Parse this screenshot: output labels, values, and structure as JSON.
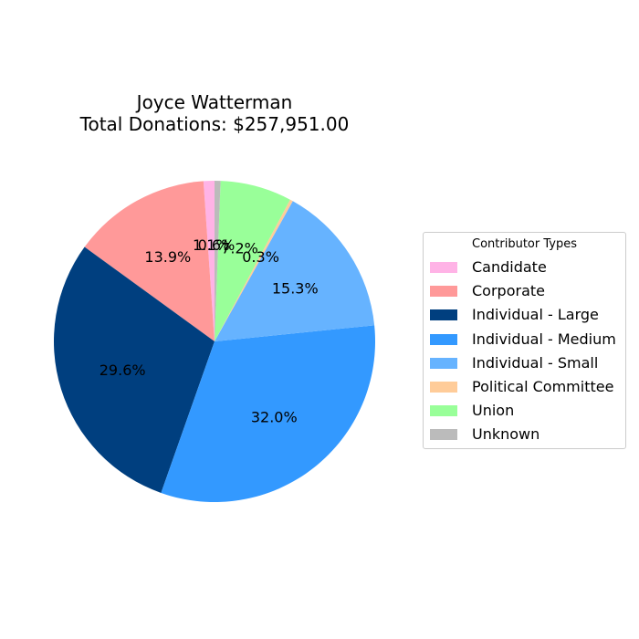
{
  "chart_data": {
    "type": "pie",
    "title_line1": "Joyce Watterman",
    "title_line2": "Total Donations: $257,951.00",
    "legend_title": "Contributor Types",
    "legend_placement": "right",
    "start_angle_deg": 90,
    "direction": "counterclockwise",
    "slices": [
      {
        "label": "Candidate",
        "percent": 1.1,
        "pct_label": "1.1%",
        "color": "#ffb3e6"
      },
      {
        "label": "Corporate",
        "percent": 13.9,
        "pct_label": "13.9%",
        "color": "#ff9999"
      },
      {
        "label": "Individual - Large",
        "percent": 29.6,
        "pct_label": "29.6%",
        "color": "#003f7f"
      },
      {
        "label": "Individual - Medium",
        "percent": 32.0,
        "pct_label": "32.0%",
        "color": "#3399ff"
      },
      {
        "label": "Individual - Small",
        "percent": 15.3,
        "pct_label": "15.3%",
        "color": "#66b3ff"
      },
      {
        "label": "Political Committee",
        "percent": 0.3,
        "pct_label": "0.3%",
        "color": "#ffcc99"
      },
      {
        "label": "Union",
        "percent": 7.2,
        "pct_label": "7.2%",
        "color": "#99ff99"
      },
      {
        "label": "Unknown",
        "percent": 0.6,
        "pct_label": "0.6%",
        "color": "#bbbbbb"
      }
    ]
  }
}
